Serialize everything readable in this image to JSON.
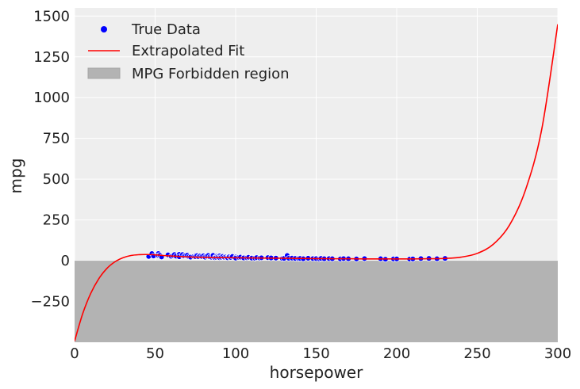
{
  "chart_data": {
    "type": "scatter",
    "xlabel": "horsepower",
    "ylabel": "mpg",
    "xlim": [
      0,
      300
    ],
    "ylim": [
      -500,
      1550
    ],
    "x_ticks": [
      0,
      50,
      100,
      150,
      200,
      250,
      300
    ],
    "y_ticks": [
      -250,
      0,
      250,
      500,
      750,
      1000,
      1250,
      1500
    ],
    "grid": true,
    "background": "#eeeeee",
    "legend": {
      "position": "top-left",
      "entries": [
        {
          "label": "True Data",
          "kind": "scatter",
          "color": "#0000ff"
        },
        {
          "label": "Extrapolated Fit",
          "kind": "line",
          "color": "#ff0000"
        },
        {
          "label": "MPG Forbidden region",
          "kind": "area",
          "color": "#b3b3b3"
        }
      ]
    },
    "series": [
      {
        "name": "True Data",
        "kind": "scatter",
        "color": "#0000ff",
        "points": [
          [
            46,
            26
          ],
          [
            48,
            44
          ],
          [
            49,
            29
          ],
          [
            52,
            44
          ],
          [
            52,
            32
          ],
          [
            53,
            33
          ],
          [
            54,
            23
          ],
          [
            58,
            36
          ],
          [
            60,
            27
          ],
          [
            61,
            32
          ],
          [
            62,
            38
          ],
          [
            63,
            28
          ],
          [
            65,
            39
          ],
          [
            65,
            24
          ],
          [
            67,
            33
          ],
          [
            67,
            38
          ],
          [
            68,
            29
          ],
          [
            69,
            32
          ],
          [
            70,
            27
          ],
          [
            70,
            34
          ],
          [
            71,
            25
          ],
          [
            72,
            22
          ],
          [
            74,
            27
          ],
          [
            75,
            31
          ],
          [
            75,
            25
          ],
          [
            76,
            31
          ],
          [
            77,
            24
          ],
          [
            78,
            29
          ],
          [
            79,
            26
          ],
          [
            80,
            30
          ],
          [
            81,
            22
          ],
          [
            82,
            28
          ],
          [
            83,
            32
          ],
          [
            84,
            23
          ],
          [
            85,
            21
          ],
          [
            86,
            25
          ],
          [
            86,
            33
          ],
          [
            87,
            19
          ],
          [
            88,
            27
          ],
          [
            88,
            20
          ],
          [
            89,
            23
          ],
          [
            90,
            29
          ],
          [
            90,
            19
          ],
          [
            91,
            21
          ],
          [
            92,
            26
          ],
          [
            93,
            21
          ],
          [
            94,
            24
          ],
          [
            95,
            22
          ],
          [
            95,
            18
          ],
          [
            96,
            24
          ],
          [
            97,
            20
          ],
          [
            98,
            26
          ],
          [
            100,
            22
          ],
          [
            100,
            16
          ],
          [
            102,
            20
          ],
          [
            103,
            22
          ],
          [
            105,
            20
          ],
          [
            105,
            17
          ],
          [
            107,
            18
          ],
          [
            108,
            21
          ],
          [
            110,
            19
          ],
          [
            110,
            16
          ],
          [
            112,
            15
          ],
          [
            113,
            19
          ],
          [
            115,
            16
          ],
          [
            116,
            18
          ],
          [
            120,
            19
          ],
          [
            122,
            17
          ],
          [
            125,
            16
          ],
          [
            129,
            13
          ],
          [
            130,
            14
          ],
          [
            132,
            32
          ],
          [
            133,
            15
          ],
          [
            135,
            16
          ],
          [
            137,
            14
          ],
          [
            139,
            13
          ],
          [
            140,
            14
          ],
          [
            142,
            12
          ],
          [
            145,
            15
          ],
          [
            148,
            13
          ],
          [
            150,
            15
          ],
          [
            150,
            13
          ],
          [
            152,
            11
          ],
          [
            153,
            14
          ],
          [
            155,
            12
          ],
          [
            158,
            13
          ],
          [
            160,
            12
          ],
          [
            165,
            11
          ],
          [
            167,
            13
          ],
          [
            170,
            12
          ],
          [
            175,
            11
          ],
          [
            180,
            13
          ],
          [
            190,
            12
          ],
          [
            193,
            9
          ],
          [
            198,
            11
          ],
          [
            200,
            11
          ],
          [
            208,
            10
          ],
          [
            210,
            11
          ],
          [
            215,
            13
          ],
          [
            220,
            14
          ],
          [
            225,
            12
          ],
          [
            230,
            14
          ]
        ]
      },
      {
        "name": "Extrapolated Fit",
        "kind": "line",
        "color": "#ff0000",
        "x": [
          0,
          5,
          10,
          15,
          20,
          25,
          30,
          35,
          40,
          45,
          50,
          55,
          60,
          65,
          70,
          75,
          80,
          85,
          90,
          95,
          100,
          110,
          120,
          130,
          140,
          150,
          160,
          170,
          180,
          190,
          200,
          210,
          220,
          230,
          240,
          250,
          260,
          270,
          280,
          290,
          300
        ],
        "y": [
          -493,
          -326,
          -201,
          -111,
          -48,
          -7,
          18,
          32,
          37,
          38,
          36,
          32,
          29,
          26,
          24,
          22,
          21,
          20,
          19,
          19,
          18,
          17,
          16,
          15,
          14,
          13,
          12,
          12,
          11,
          11,
          11,
          11,
          12,
          14,
          22,
          45,
          101,
          218,
          435,
          804,
          1450
        ]
      },
      {
        "name": "MPG Forbidden region",
        "kind": "area",
        "color": "#b3b3b3",
        "y_range": [
          -500,
          0
        ]
      }
    ]
  }
}
